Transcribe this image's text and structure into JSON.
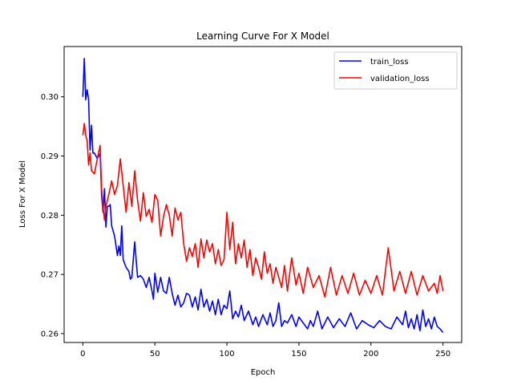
{
  "chart_data": {
    "type": "line",
    "title": "Learning Curve For X Model",
    "xlabel": "Epoch",
    "ylabel": "Loss For X Model",
    "xlim": [
      -13,
      263
    ],
    "ylim": [
      0.2585,
      0.3085
    ],
    "xticks": [
      0,
      50,
      100,
      150,
      200,
      250
    ],
    "yticks": [
      0.26,
      0.27,
      0.28,
      0.29,
      0.3
    ],
    "ytick_labels": [
      "0.26",
      "0.27",
      "0.28",
      "0.29",
      "0.30"
    ],
    "grid": false,
    "legend_position": "top-right",
    "series": [
      {
        "name": "train_loss",
        "color": "#0000ff",
        "x": [
          0,
          1,
          2,
          3,
          4,
          5,
          6,
          7,
          8,
          10,
          12,
          13,
          14,
          15,
          16,
          17,
          18,
          19,
          20,
          22,
          24,
          25,
          26,
          27,
          28,
          30,
          32,
          33,
          34,
          36,
          38,
          40,
          42,
          44,
          46,
          48,
          49,
          50,
          52,
          54,
          56,
          58,
          60,
          62,
          64,
          66,
          68,
          70,
          72,
          74,
          76,
          78,
          80,
          82,
          84,
          86,
          88,
          90,
          92,
          94,
          96,
          98,
          100,
          102,
          104,
          106,
          108,
          110,
          112,
          115,
          118,
          120,
          122,
          125,
          128,
          130,
          132,
          134,
          136,
          138,
          140,
          142,
          145,
          148,
          150,
          153,
          156,
          158,
          160,
          163,
          166,
          170,
          174,
          178,
          182,
          186,
          190,
          194,
          198,
          202,
          206,
          210,
          214,
          218,
          222,
          224,
          226,
          228,
          230,
          232,
          234,
          236,
          238,
          240,
          242,
          244,
          246,
          248,
          250
        ],
        "y": [
          0.3,
          0.3065,
          0.2995,
          0.3012,
          0.2995,
          0.291,
          0.2952,
          0.2905,
          0.2905,
          0.2896,
          0.2904,
          0.2835,
          0.2805,
          0.2845,
          0.278,
          0.2815,
          0.2815,
          0.2818,
          0.2782,
          0.2765,
          0.2732,
          0.2748,
          0.2732,
          0.2782,
          0.2725,
          0.2712,
          0.2705,
          0.2692,
          0.2695,
          0.2755,
          0.2695,
          0.2698,
          0.2692,
          0.2678,
          0.2695,
          0.2672,
          0.2658,
          0.2702,
          0.267,
          0.2695,
          0.2672,
          0.2668,
          0.2695,
          0.2668,
          0.2648,
          0.2665,
          0.2645,
          0.2652,
          0.2668,
          0.2665,
          0.2645,
          0.2662,
          0.264,
          0.2675,
          0.2645,
          0.2658,
          0.2638,
          0.2655,
          0.2632,
          0.2658,
          0.2632,
          0.2648,
          0.2642,
          0.2672,
          0.2625,
          0.2638,
          0.2628,
          0.2648,
          0.2622,
          0.2638,
          0.2615,
          0.2628,
          0.2612,
          0.2632,
          0.2615,
          0.2635,
          0.2612,
          0.2622,
          0.2652,
          0.2612,
          0.2622,
          0.2618,
          0.2632,
          0.2612,
          0.2628,
          0.2618,
          0.2608,
          0.2622,
          0.2612,
          0.2638,
          0.2608,
          0.2628,
          0.261,
          0.2625,
          0.2612,
          0.2635,
          0.2608,
          0.2622,
          0.2615,
          0.261,
          0.2622,
          0.2612,
          0.2608,
          0.2628,
          0.2615,
          0.2638,
          0.261,
          0.2625,
          0.2608,
          0.2632,
          0.2605,
          0.264,
          0.2612,
          0.2625,
          0.2608,
          0.2628,
          0.2612,
          0.2608,
          0.2602
        ]
      },
      {
        "name": "validation_loss",
        "color": "#ff0000",
        "x": [
          0,
          1,
          2,
          3,
          4,
          5,
          6,
          8,
          10,
          12,
          13,
          14,
          15,
          16,
          18,
          20,
          22,
          24,
          26,
          28,
          30,
          32,
          34,
          36,
          38,
          40,
          42,
          44,
          46,
          48,
          50,
          52,
          54,
          56,
          58,
          60,
          62,
          64,
          66,
          68,
          70,
          72,
          74,
          76,
          78,
          80,
          82,
          84,
          86,
          88,
          90,
          92,
          94,
          96,
          98,
          100,
          102,
          104,
          106,
          108,
          110,
          112,
          114,
          116,
          118,
          120,
          122,
          124,
          126,
          128,
          130,
          132,
          134,
          136,
          138,
          140,
          142,
          145,
          148,
          150,
          153,
          156,
          160,
          164,
          168,
          172,
          176,
          180,
          184,
          188,
          192,
          196,
          200,
          204,
          208,
          212,
          216,
          220,
          224,
          228,
          232,
          236,
          240,
          244,
          246,
          248,
          250
        ],
        "y": [
          0.2935,
          0.2955,
          0.2935,
          0.2925,
          0.2885,
          0.2905,
          0.2875,
          0.287,
          0.2895,
          0.2918,
          0.2845,
          0.2815,
          0.2792,
          0.2815,
          0.2835,
          0.2858,
          0.2835,
          0.285,
          0.2895,
          0.285,
          0.2805,
          0.2855,
          0.2815,
          0.2875,
          0.2825,
          0.279,
          0.2838,
          0.2798,
          0.281,
          0.2788,
          0.2835,
          0.2825,
          0.2765,
          0.2798,
          0.2818,
          0.28,
          0.2765,
          0.2812,
          0.2792,
          0.2805,
          0.2752,
          0.2722,
          0.2745,
          0.273,
          0.2752,
          0.2712,
          0.276,
          0.2728,
          0.2758,
          0.2738,
          0.2752,
          0.2718,
          0.2742,
          0.2715,
          0.2725,
          0.2805,
          0.2742,
          0.2788,
          0.2718,
          0.2752,
          0.2728,
          0.2758,
          0.2712,
          0.2742,
          0.2698,
          0.2728,
          0.2712,
          0.2692,
          0.2738,
          0.2702,
          0.2718,
          0.2685,
          0.2712,
          0.2695,
          0.2678,
          0.2715,
          0.2672,
          0.2728,
          0.2682,
          0.2702,
          0.2668,
          0.2712,
          0.2678,
          0.2698,
          0.2662,
          0.2712,
          0.2665,
          0.2698,
          0.2668,
          0.2702,
          0.2665,
          0.269,
          0.2668,
          0.2698,
          0.2665,
          0.2745,
          0.2672,
          0.2705,
          0.2668,
          0.2705,
          0.2665,
          0.2698,
          0.2672,
          0.2685,
          0.2668,
          0.2698,
          0.2672
        ]
      }
    ]
  }
}
